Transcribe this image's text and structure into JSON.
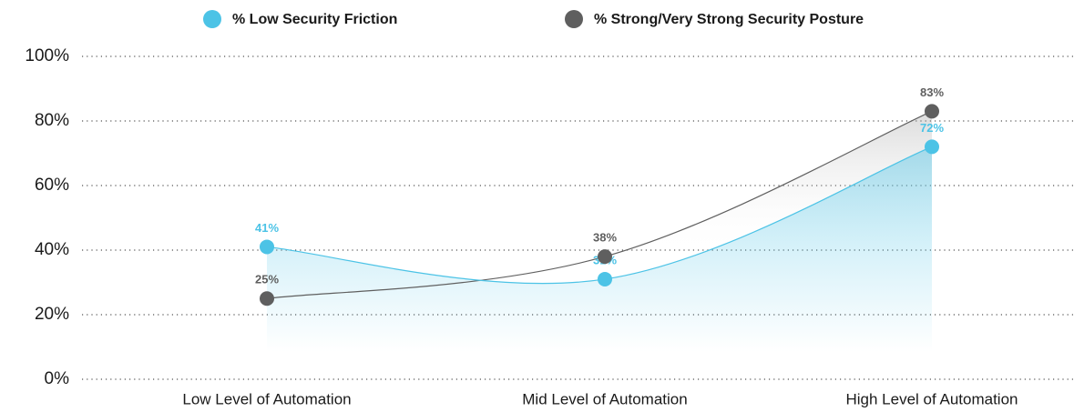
{
  "chart_data": {
    "type": "line",
    "categories": [
      "Low Level of Automation",
      "Mid Level of Automation",
      "High Level of Automation"
    ],
    "series": [
      {
        "name": "% Low Security Friction",
        "color": "#4cc3e6",
        "values": [
          41,
          31,
          72
        ],
        "value_labels": [
          "41%",
          "31%",
          "72%"
        ]
      },
      {
        "name": "% Strong/Very Strong Security Posture",
        "color": "#5f5f5f",
        "values": [
          25,
          38,
          83
        ],
        "value_labels": [
          "25%",
          "38%",
          "83%"
        ]
      }
    ],
    "ylim": [
      0,
      100
    ],
    "yticks": [
      {
        "value": 0,
        "label": "0%"
      },
      {
        "value": 20,
        "label": "20%"
      },
      {
        "value": 40,
        "label": "40%"
      },
      {
        "value": 60,
        "label": "60%"
      },
      {
        "value": 80,
        "label": "80%"
      },
      {
        "value": 100,
        "label": "100%"
      }
    ],
    "grid": true,
    "legend": "top"
  }
}
